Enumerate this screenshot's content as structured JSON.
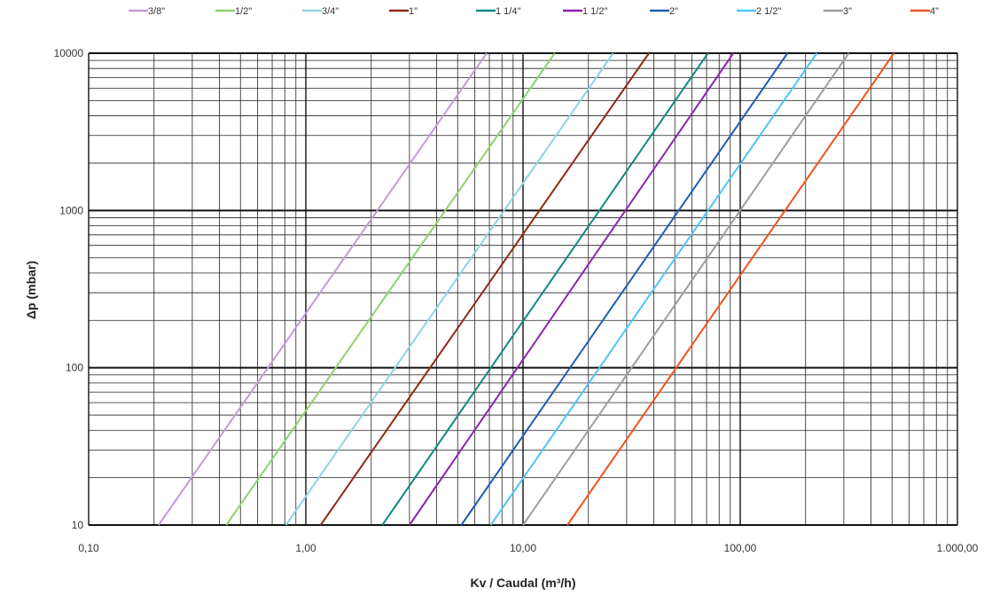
{
  "chart_data": {
    "type": "line",
    "title": "",
    "xlabel": "Kv / Caudal (m³/h)",
    "ylabel": "Δp (mbar)",
    "x_scale": "log",
    "y_scale": "log",
    "xlim": [
      0.1,
      1000
    ],
    "ylim": [
      10,
      10000
    ],
    "x_ticks": [
      0.1,
      1,
      10,
      100,
      1000
    ],
    "x_tick_labels": [
      "0,10",
      "1,00",
      "10,00",
      "100,00",
      "1.000,00"
    ],
    "y_ticks": [
      10,
      100,
      1000,
      10000
    ],
    "y_tick_labels": [
      "10",
      "100",
      "1000",
      "10000"
    ],
    "grid": true,
    "legend_position": "top",
    "series": [
      {
        "name": "3/8\"",
        "color": "#c39bd3",
        "x": [
          0.21,
          6.8
        ],
        "y": [
          10,
          10000
        ]
      },
      {
        "name": "1/2\"",
        "color": "#8fd16f",
        "x": [
          0.43,
          14.0
        ],
        "y": [
          10,
          10000
        ]
      },
      {
        "name": "3/4\"",
        "color": "#8fd3e0",
        "x": [
          0.81,
          26.0
        ],
        "y": [
          10,
          10000
        ]
      },
      {
        "name": "1\"",
        "color": "#8b2b12",
        "x": [
          1.17,
          38.0
        ],
        "y": [
          10,
          10000
        ]
      },
      {
        "name": "1 1/4\"",
        "color": "#0e8a80",
        "x": [
          2.25,
          71.0
        ],
        "y": [
          10,
          10000
        ]
      },
      {
        "name": "1 1/2\"",
        "color": "#8e24aa",
        "x": [
          3.0,
          93.0
        ],
        "y": [
          10,
          10000
        ]
      },
      {
        "name": "2\"",
        "color": "#1f5db3",
        "x": [
          5.2,
          165.0
        ],
        "y": [
          10,
          10000
        ]
      },
      {
        "name": "2 1/2\"",
        "color": "#4fc3f7",
        "x": [
          7.1,
          225.0
        ],
        "y": [
          10,
          10000
        ]
      },
      {
        "name": "3\"",
        "color": "#9e9e9e",
        "x": [
          10.0,
          316.0
        ],
        "y": [
          10,
          10000
        ]
      },
      {
        "name": "4\"",
        "color": "#f4511e",
        "x": [
          16.0,
          510.0
        ],
        "y": [
          10,
          10000
        ]
      }
    ]
  }
}
